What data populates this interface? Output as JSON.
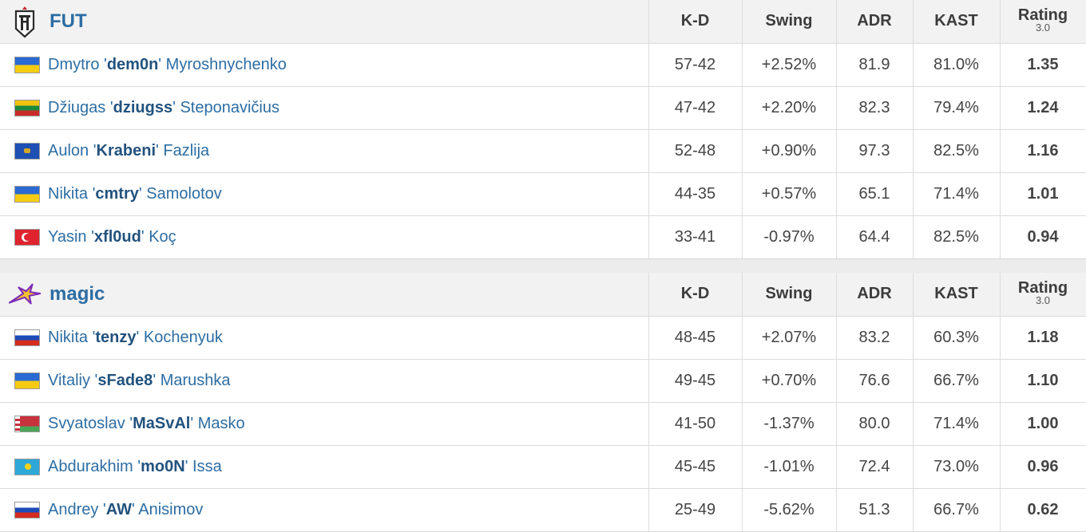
{
  "columns": {
    "kd": "K-D",
    "swing": "Swing",
    "adr": "ADR",
    "kast": "KAST",
    "rating": "Rating",
    "rating_version": "3.0"
  },
  "teams": [
    {
      "name": "FUT",
      "logo_icon": "fut-shield-icon",
      "players": [
        {
          "first": "Dmytro",
          "nick": "dem0n",
          "last": "Myroshnychenko",
          "flag": "ua",
          "kd": "57-42",
          "swing": "+2.52%",
          "swing_type": "pos",
          "adr": "81.9",
          "kast": "81.0%",
          "rating": "1.35",
          "rating_type": "good"
        },
        {
          "first": "Džiugas",
          "nick": "dziugss",
          "last": "Steponavičius",
          "flag": "lt",
          "kd": "47-42",
          "swing": "+2.20%",
          "swing_type": "pos",
          "adr": "82.3",
          "kast": "79.4%",
          "rating": "1.24",
          "rating_type": "good"
        },
        {
          "first": "Aulon",
          "nick": "Krabeni",
          "last": "Fazlija",
          "flag": "xk",
          "kd": "52-48",
          "swing": "+0.90%",
          "swing_type": "neu",
          "adr": "97.3",
          "kast": "82.5%",
          "rating": "1.16",
          "rating_type": "good"
        },
        {
          "first": "Nikita",
          "nick": "cmtry",
          "last": "Samolotov",
          "flag": "ua",
          "kd": "44-35",
          "swing": "+0.57%",
          "swing_type": "neu",
          "adr": "65.1",
          "kast": "71.4%",
          "rating": "1.01",
          "rating_type": "mid"
        },
        {
          "first": "Yasin",
          "nick": "xfl0ud",
          "last": "Koç",
          "flag": "tr",
          "kd": "33-41",
          "swing": "-0.97%",
          "swing_type": "neu",
          "adr": "64.4",
          "kast": "82.5%",
          "rating": "0.94",
          "rating_type": "bad"
        }
      ]
    },
    {
      "name": "magic",
      "logo_icon": "magic-star-icon",
      "players": [
        {
          "first": "Nikita",
          "nick": "tenzy",
          "last": "Kochenyuk",
          "flag": "ru",
          "kd": "48-45",
          "swing": "+2.07%",
          "swing_type": "pos",
          "adr": "83.2",
          "kast": "60.3%",
          "rating": "1.18",
          "rating_type": "good"
        },
        {
          "first": "Vitaliy",
          "nick": "sFade8",
          "last": "Marushka",
          "flag": "ua",
          "kd": "49-45",
          "swing": "+0.70%",
          "swing_type": "neu",
          "adr": "76.6",
          "kast": "66.7%",
          "rating": "1.10",
          "rating_type": "good"
        },
        {
          "first": "Svyatoslav",
          "nick": "MaSvAl",
          "last": "Masko",
          "flag": "by",
          "kd": "41-50",
          "swing": "-1.37%",
          "swing_type": "neg",
          "adr": "80.0",
          "kast": "71.4%",
          "rating": "1.00",
          "rating_type": "mid"
        },
        {
          "first": "Abdurakhim",
          "nick": "mo0N",
          "last": "Issa",
          "flag": "kz",
          "kd": "45-45",
          "swing": "-1.01%",
          "swing_type": "neg",
          "adr": "72.4",
          "kast": "73.0%",
          "rating": "0.96",
          "rating_type": "mid"
        },
        {
          "first": "Andrey",
          "nick": "AW",
          "last": "Anisimov",
          "flag": "ru",
          "kd": "25-49",
          "swing": "-5.62%",
          "swing_type": "neg",
          "adr": "51.3",
          "kast": "66.7%",
          "rating": "0.62",
          "rating_type": "bad"
        }
      ]
    }
  ],
  "colors": {
    "link": "#2d6da3",
    "positive": "#2eaa3c",
    "negative": "#d62b2b",
    "rating_good": "#2ba13a",
    "rating_bad": "#d11f1f"
  }
}
